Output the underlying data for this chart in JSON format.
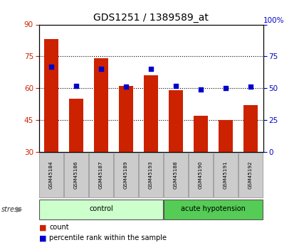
{
  "title": "GDS1251 / 1389589_at",
  "samples": [
    "GSM45184",
    "GSM45186",
    "GSM45187",
    "GSM45189",
    "GSM45193",
    "GSM45188",
    "GSM45190",
    "GSM45191",
    "GSM45192"
  ],
  "counts": [
    83,
    55,
    74,
    61,
    66,
    59,
    47,
    45,
    52
  ],
  "percentiles": [
    67,
    52,
    65,
    51,
    65,
    52,
    49,
    50,
    51
  ],
  "ylim_left": [
    30,
    90
  ],
  "ylim_right": [
    0,
    100
  ],
  "yticks_left": [
    30,
    45,
    60,
    75,
    90
  ],
  "yticks_right": [
    0,
    25,
    50,
    75,
    100
  ],
  "bar_color": "#cc2200",
  "dot_color": "#0000cc",
  "groups": [
    {
      "label": "control",
      "indices": [
        0,
        1,
        2,
        3,
        4
      ],
      "color": "#ccffcc"
    },
    {
      "label": "acute hypotension",
      "indices": [
        5,
        6,
        7,
        8
      ],
      "color": "#55cc55"
    }
  ],
  "tick_bg_color": "#cccccc",
  "bar_width": 0.55,
  "plot_bg": "#ffffff",
  "title_fontsize": 10,
  "gridline_color": "#000000",
  "gridline_ticks": [
    45,
    60,
    75
  ],
  "stress_label": "stress"
}
